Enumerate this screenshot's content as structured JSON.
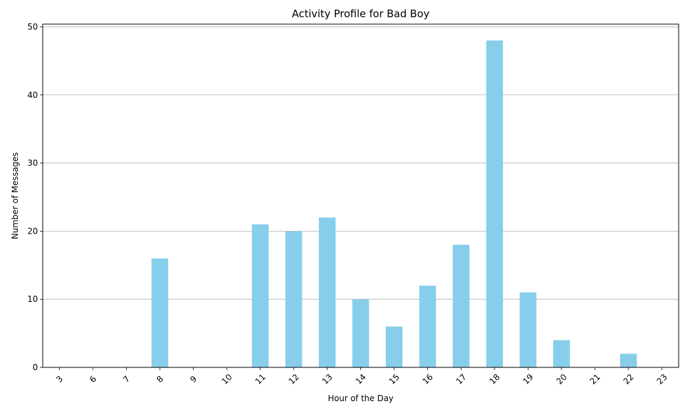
{
  "chart_data": {
    "type": "bar",
    "title": "Activity Profile for Bad Boy",
    "xlabel": "Hour of the Day",
    "ylabel": "Number of Messages",
    "categories": [
      "3",
      "6",
      "7",
      "8",
      "9",
      "10",
      "11",
      "12",
      "13",
      "14",
      "15",
      "16",
      "17",
      "18",
      "19",
      "20",
      "21",
      "22",
      "23"
    ],
    "values": [
      0,
      0,
      0,
      16,
      0,
      0,
      21,
      20,
      22,
      10,
      6,
      12,
      18,
      48,
      11,
      4,
      0,
      2,
      0
    ],
    "ylim": [
      0,
      50.4
    ],
    "yticks": [
      0,
      10,
      20,
      30,
      40,
      50
    ],
    "grid": "y",
    "bar_color": "#87ceeb",
    "x_tick_rotation_deg": 45
  }
}
